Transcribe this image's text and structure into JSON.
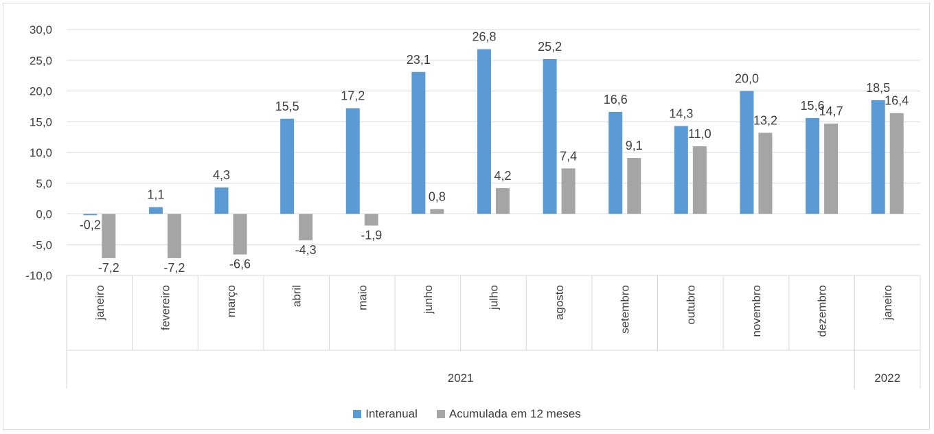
{
  "chart_data": {
    "type": "bar",
    "colors": {
      "interanual": "#5b9bd5",
      "acumulada": "#a5a5a5",
      "grid": "#d9d9d9",
      "text": "#404040"
    },
    "categories": [
      "janeiro",
      "fevereiro",
      "março",
      "abril",
      "maio",
      "junho",
      "julho",
      "agosto",
      "setembro",
      "outubro",
      "novembro",
      "dezembro",
      "janeiro"
    ],
    "years": [
      {
        "label": "2021",
        "span": 12
      },
      {
        "label": "2022",
        "span": 1
      }
    ],
    "series": [
      {
        "name": "Interanual",
        "values": [
          -0.2,
          1.1,
          4.3,
          15.5,
          17.2,
          23.1,
          26.8,
          25.2,
          16.6,
          14.3,
          20.0,
          15.6,
          18.5
        ],
        "labels": [
          "-0,2",
          "1,1",
          "4,3",
          "15,5",
          "17,2",
          "23,1",
          "26,8",
          "25,2",
          "16,6",
          "14,3",
          "20,0",
          "15,6",
          "18,5"
        ]
      },
      {
        "name": "Acumulada em 12 meses",
        "values": [
          -7.2,
          -7.2,
          -6.6,
          -4.3,
          -1.9,
          0.8,
          4.2,
          7.4,
          9.1,
          11.0,
          13.2,
          14.7,
          16.4
        ],
        "labels": [
          "-7,2",
          "-7,2",
          "-6,6",
          "-4,3",
          "-1,9",
          "0,8",
          "4,2",
          "7,4",
          "9,1",
          "11,0",
          "13,2",
          "14,7",
          "16,4"
        ]
      }
    ],
    "ylim": [
      -10,
      30
    ],
    "yticks": [
      30,
      25,
      20,
      15,
      10,
      5,
      0,
      -5,
      -10
    ],
    "ytick_labels": [
      "30,0",
      "25,0",
      "20,0",
      "15,0",
      "10,0",
      "5,0",
      "0,0",
      "-5,0",
      "-10,0"
    ],
    "grid": true,
    "legend_position": "bottom",
    "title": "",
    "xlabel": "",
    "ylabel": ""
  },
  "legend": {
    "items": [
      "Interanual",
      "Acumulada em 12 meses"
    ]
  }
}
